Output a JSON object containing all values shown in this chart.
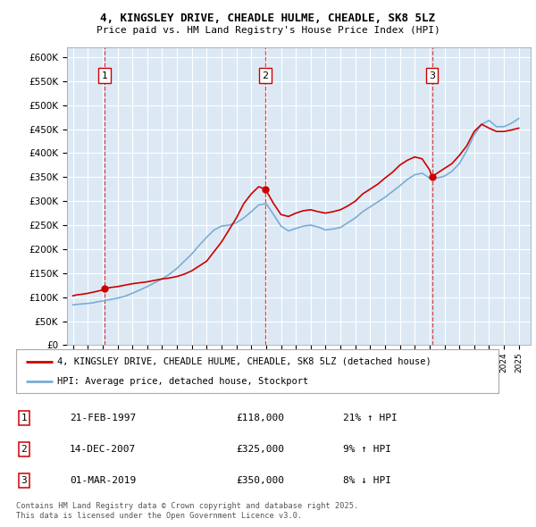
{
  "title": "4, KINGSLEY DRIVE, CHEADLE HULME, CHEADLE, SK8 5LZ",
  "subtitle": "Price paid vs. HM Land Registry's House Price Index (HPI)",
  "ylim": [
    0,
    620000
  ],
  "yticks": [
    0,
    50000,
    100000,
    150000,
    200000,
    250000,
    300000,
    350000,
    400000,
    450000,
    500000,
    550000,
    600000
  ],
  "xlim_start": 1994.6,
  "xlim_end": 2025.8,
  "plot_bg_color": "#dce9f5",
  "grid_color": "#ffffff",
  "legend_entries": [
    "4, KINGSLEY DRIVE, CHEADLE HULME, CHEADLE, SK8 5LZ (detached house)",
    "HPI: Average price, detached house, Stockport"
  ],
  "legend_colors": [
    "#cc0000",
    "#7aadd4"
  ],
  "transactions": [
    {
      "num": 1,
      "date": "21-FEB-1997",
      "price": 118000,
      "hpi_pct": "21%",
      "hpi_dir": "↑",
      "year": 1997.12
    },
    {
      "num": 2,
      "date": "14-DEC-2007",
      "price": 325000,
      "hpi_pct": "9%",
      "hpi_dir": "↑",
      "year": 2007.95
    },
    {
      "num": 3,
      "date": "01-MAR-2019",
      "price": 350000,
      "hpi_pct": "8%",
      "hpi_dir": "↓",
      "year": 2019.16
    }
  ],
  "footer": "Contains HM Land Registry data © Crown copyright and database right 2025.\nThis data is licensed under the Open Government Licence v3.0.",
  "red_line_data": {
    "x": [
      1995.0,
      1995.3,
      1995.6,
      1996.0,
      1996.3,
      1996.6,
      1997.0,
      1997.12,
      1997.5,
      1998.0,
      1998.5,
      1999.0,
      1999.5,
      2000.0,
      2000.5,
      2001.0,
      2001.5,
      2002.0,
      2002.5,
      2003.0,
      2003.5,
      2004.0,
      2004.5,
      2005.0,
      2005.5,
      2006.0,
      2006.5,
      2007.0,
      2007.5,
      2007.95,
      2008.5,
      2009.0,
      2009.5,
      2010.0,
      2010.5,
      2011.0,
      2011.5,
      2012.0,
      2012.5,
      2013.0,
      2013.5,
      2014.0,
      2014.5,
      2015.0,
      2015.5,
      2016.0,
      2016.5,
      2017.0,
      2017.5,
      2018.0,
      2018.5,
      2019.0,
      2019.16,
      2019.5,
      2020.0,
      2020.5,
      2021.0,
      2021.5,
      2022.0,
      2022.5,
      2023.0,
      2023.5,
      2024.0,
      2024.5,
      2025.0
    ],
    "y": [
      103000,
      105000,
      106000,
      108000,
      110000,
      112000,
      115000,
      118000,
      120000,
      122000,
      125000,
      128000,
      130000,
      132000,
      135000,
      138000,
      140000,
      143000,
      148000,
      155000,
      165000,
      175000,
      195000,
      215000,
      240000,
      265000,
      295000,
      315000,
      330000,
      325000,
      295000,
      272000,
      268000,
      275000,
      280000,
      282000,
      278000,
      275000,
      278000,
      282000,
      290000,
      300000,
      315000,
      325000,
      335000,
      348000,
      360000,
      375000,
      385000,
      392000,
      388000,
      365000,
      350000,
      358000,
      368000,
      378000,
      395000,
      415000,
      445000,
      460000,
      452000,
      445000,
      445000,
      448000,
      452000
    ]
  },
  "blue_line_data": {
    "x": [
      1995.0,
      1995.3,
      1995.6,
      1996.0,
      1996.3,
      1996.6,
      1997.0,
      1997.5,
      1998.0,
      1998.5,
      1999.0,
      1999.5,
      2000.0,
      2000.5,
      2001.0,
      2001.5,
      2002.0,
      2002.5,
      2003.0,
      2003.5,
      2004.0,
      2004.5,
      2005.0,
      2005.5,
      2006.0,
      2006.5,
      2007.0,
      2007.5,
      2008.0,
      2008.5,
      2009.0,
      2009.5,
      2010.0,
      2010.5,
      2011.0,
      2011.5,
      2012.0,
      2012.5,
      2013.0,
      2013.5,
      2014.0,
      2014.5,
      2015.0,
      2015.5,
      2016.0,
      2016.5,
      2017.0,
      2017.5,
      2018.0,
      2018.5,
      2019.0,
      2019.5,
      2020.0,
      2020.5,
      2021.0,
      2021.5,
      2022.0,
      2022.5,
      2023.0,
      2023.5,
      2024.0,
      2024.5,
      2025.0
    ],
    "y": [
      84000,
      85000,
      86000,
      87000,
      88000,
      90000,
      92000,
      95000,
      98000,
      102000,
      108000,
      115000,
      122000,
      130000,
      138000,
      148000,
      160000,
      175000,
      190000,
      208000,
      225000,
      240000,
      248000,
      250000,
      255000,
      265000,
      278000,
      292000,
      295000,
      272000,
      248000,
      238000,
      243000,
      248000,
      250000,
      246000,
      240000,
      242000,
      245000,
      255000,
      265000,
      278000,
      288000,
      298000,
      308000,
      320000,
      332000,
      345000,
      355000,
      358000,
      348000,
      348000,
      352000,
      362000,
      378000,
      405000,
      438000,
      460000,
      468000,
      455000,
      455000,
      462000,
      472000
    ]
  }
}
